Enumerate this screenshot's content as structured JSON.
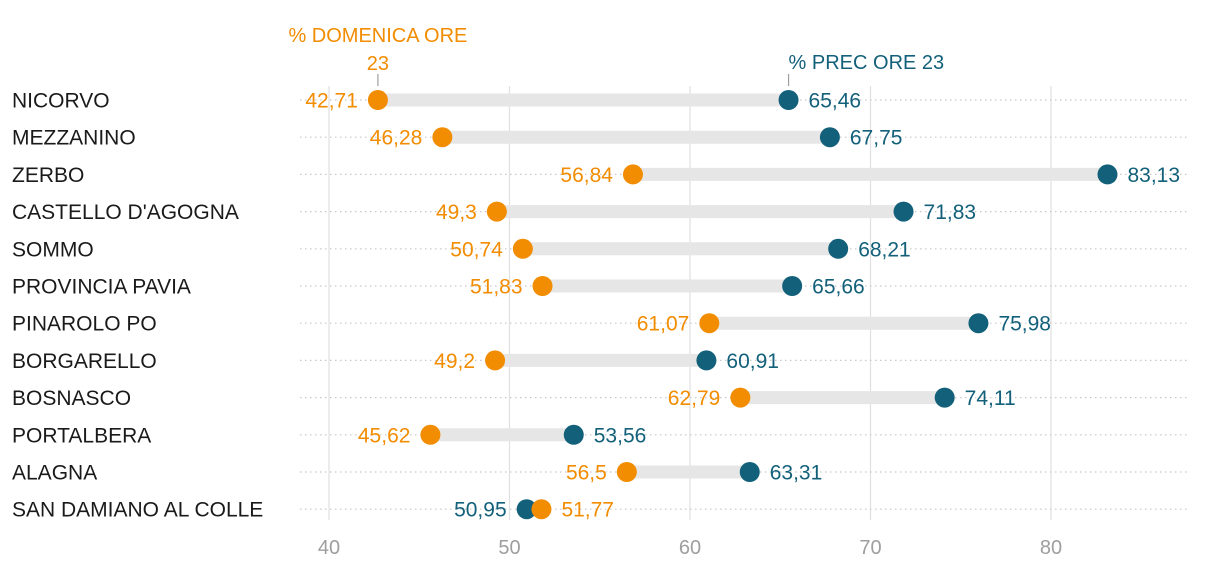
{
  "chart_data": {
    "type": "dumbbell",
    "title": "",
    "xlabel": "",
    "ylabel": "",
    "xlim": [
      37,
      87
    ],
    "xticks": [
      40,
      50,
      60,
      70,
      80
    ],
    "series": [
      {
        "name": "% DOMENICA ORE 23",
        "name_lines": [
          "% DOMENICA ORE",
          "23"
        ],
        "color": "#f28c00",
        "annotate_row": 0
      },
      {
        "name": "% PREC ORE 23",
        "name_lines": [
          "% PREC ORE 23"
        ],
        "color": "#13607a",
        "annotate_row": 0
      }
    ],
    "rows": [
      {
        "label": "NICORVO",
        "sunday": 42.71,
        "sunday_text": "42,71",
        "prev": 65.46,
        "prev_text": "65,46"
      },
      {
        "label": "MEZZANINO",
        "sunday": 46.28,
        "sunday_text": "46,28",
        "prev": 67.75,
        "prev_text": "67,75"
      },
      {
        "label": "ZERBO",
        "sunday": 56.84,
        "sunday_text": "56,84",
        "prev": 83.13,
        "prev_text": "83,13"
      },
      {
        "label": "CASTELLO D'AGOGNA",
        "sunday": 49.3,
        "sunday_text": "49,3",
        "prev": 71.83,
        "prev_text": "71,83"
      },
      {
        "label": "SOMMO",
        "sunday": 50.74,
        "sunday_text": "50,74",
        "prev": 68.21,
        "prev_text": "68,21"
      },
      {
        "label": "PROVINCIA PAVIA",
        "sunday": 51.83,
        "sunday_text": "51,83",
        "prev": 65.66,
        "prev_text": "65,66"
      },
      {
        "label": "PINAROLO PO",
        "sunday": 61.07,
        "sunday_text": "61,07",
        "prev": 75.98,
        "prev_text": "75,98"
      },
      {
        "label": "BORGARELLO",
        "sunday": 49.2,
        "sunday_text": "49,2",
        "prev": 60.91,
        "prev_text": "60,91"
      },
      {
        "label": "BOSNASCO",
        "sunday": 62.79,
        "sunday_text": "62,79",
        "prev": 74.11,
        "prev_text": "74,11"
      },
      {
        "label": "PORTALBERA",
        "sunday": 45.62,
        "sunday_text": "45,62",
        "prev": 53.56,
        "prev_text": "53,56"
      },
      {
        "label": "ALAGNA",
        "sunday": 56.5,
        "sunday_text": "56,5",
        "prev": 63.31,
        "prev_text": "63,31"
      },
      {
        "label": "SAN DAMIANO AL COLLE",
        "sunday": 51.77,
        "sunday_text": "51,77",
        "prev": 50.95,
        "prev_text": "50,95"
      }
    ]
  },
  "colors": {
    "sunday": "#f28c00",
    "prev": "#13607a",
    "bar": "#e6e6e6",
    "grid": "#e0e0e0",
    "dots": "#c8c8c8",
    "axis_text": "#9e9e9e",
    "label_text": "#1a1a1a"
  }
}
